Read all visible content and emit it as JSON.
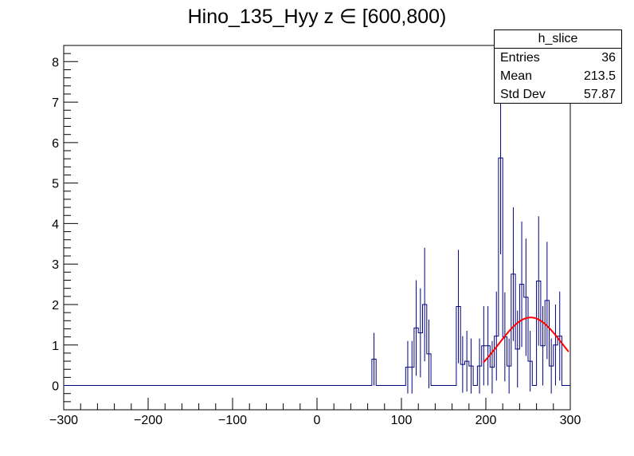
{
  "chart_data": {
    "type": "bar",
    "title": "Hino_135_Hyy z  ∈ [600,800)",
    "xlim": [
      -300,
      300
    ],
    "ylim": [
      -0.6,
      8.4
    ],
    "x_ticks": [
      -300,
      -200,
      -100,
      0,
      100,
      200,
      300
    ],
    "x_tick_labels": [
      "−300",
      "−200",
      "−100",
      "0",
      "100",
      "200",
      "300"
    ],
    "y_ticks": [
      0,
      1,
      2,
      3,
      4,
      5,
      6,
      7,
      8
    ],
    "y_tick_labels": [
      "0",
      "1",
      "2",
      "3",
      "4",
      "5",
      "6",
      "7",
      "8"
    ],
    "bin_width": 5,
    "bins_x_low": [
      65,
      70,
      75,
      80,
      85,
      90,
      95,
      100,
      105,
      110,
      115,
      120,
      125,
      130,
      135,
      140,
      145,
      150,
      155,
      160,
      165,
      170,
      175,
      180,
      185,
      190,
      195,
      200,
      205,
      210,
      215,
      220,
      225,
      230,
      235,
      240,
      245,
      250,
      255,
      260,
      265,
      270,
      275,
      280,
      285,
      290,
      295
    ],
    "bins_y": [
      0.65,
      0,
      0,
      0,
      0,
      0,
      0,
      0,
      0.45,
      0.45,
      1.42,
      1.3,
      2.0,
      0.78,
      0,
      0,
      0,
      0,
      0,
      0,
      1.95,
      0.52,
      0.6,
      0.48,
      0,
      0.48,
      0.98,
      0.98,
      0.45,
      1.22,
      5.62,
      1.2,
      0.48,
      2.75,
      0.9,
      2.5,
      2.18,
      0.6,
      0,
      2.58,
      0.98,
      2.1,
      0.48,
      1.0,
      1.22,
      0,
      0
    ],
    "bins_err": [
      0.65,
      0,
      0,
      0,
      0,
      0,
      0,
      0,
      0.65,
      0.65,
      1.18,
      1.1,
      1.4,
      0.85,
      0,
      0,
      0,
      0,
      0,
      0,
      1.4,
      0.7,
      0.75,
      0.68,
      0,
      0.68,
      0.98,
      0.98,
      0.65,
      1.1,
      2.38,
      1.1,
      0.68,
      1.65,
      0.95,
      1.55,
      1.45,
      0.75,
      0,
      1.6,
      0.98,
      1.45,
      0.68,
      1.0,
      1.1,
      0,
      0
    ],
    "fit": {
      "type": "gaussian",
      "amplitude": 1.68,
      "mean": 253,
      "sigma": 38,
      "x_range": [
        197,
        298
      ],
      "color": "#ff0000"
    },
    "histogram_color": "#000080",
    "grid": false,
    "stats_box": {
      "name": "h_slice",
      "entries_label": "Entries",
      "entries": "36",
      "mean_label": "Mean",
      "mean": "213.5",
      "std_label": "Std Dev",
      "std": "57.87",
      "placement": "top-right"
    }
  }
}
